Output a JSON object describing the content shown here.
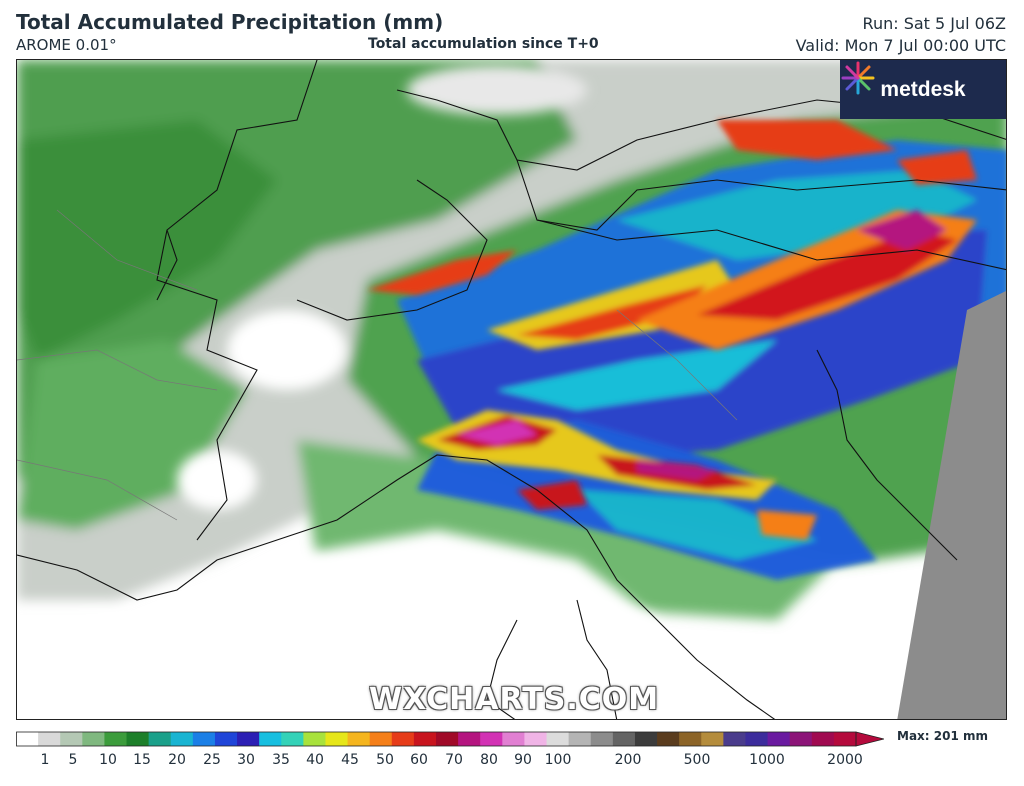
{
  "header": {
    "title": "Total Accumulated Precipitation (mm)",
    "model": "AROME 0.01°",
    "subtitle": "Total accumulation since T+0",
    "run": "Run: Sat 5 Jul 06Z",
    "valid": "Valid: Mon 7 Jul 00:00 UTC"
  },
  "logo": {
    "text": "metdesk",
    "icon": "metdesk-starburst-icon"
  },
  "watermark": "WXCHARTS.COM",
  "legend": {
    "ticks": [
      "1",
      "5",
      "10",
      "15",
      "20",
      "25",
      "30",
      "35",
      "40",
      "45",
      "50",
      "60",
      "70",
      "80",
      "90",
      "100",
      "200",
      "500",
      "1000",
      "2000"
    ],
    "max_label": "Max: 201 mm",
    "colors": [
      "#ffffff",
      "#d9d9d9",
      "#b4c8b4",
      "#7fb87f",
      "#3c9c3c",
      "#1d7f2a",
      "#1aa08a",
      "#19b4d2",
      "#1b7fe6",
      "#1f45d8",
      "#2c1fb4",
      "#17bfe0",
      "#33d2b8",
      "#a8e23c",
      "#e6e619",
      "#f5b51e",
      "#f57f19",
      "#e63c19",
      "#c8141e",
      "#a00a28",
      "#b4147f",
      "#d232b4",
      "#e17fd2",
      "#f0b4e6",
      "#dcdcdc",
      "#b4b4b4",
      "#8c8c8c",
      "#646464",
      "#3c3c3c",
      "#5a3c1e",
      "#8c6428",
      "#b48c3c",
      "#4a3c8c",
      "#3c2c9c",
      "#6a1aa0",
      "#8c1478",
      "#a00a50",
      "#b40a3c"
    ]
  }
}
